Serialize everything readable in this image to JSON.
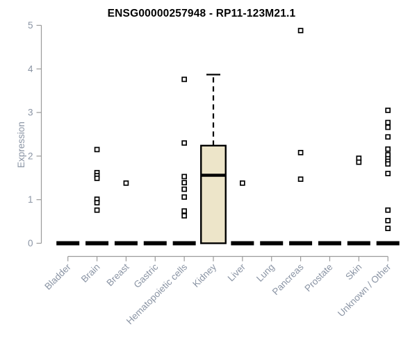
{
  "chart_data": {
    "type": "boxplot",
    "title": "ENSG00000257948 - RP11-123M21.1",
    "ylabel": "Expression",
    "xlabel": "",
    "ylim": [
      0,
      5
    ],
    "yticks": [
      0,
      1,
      2,
      3,
      4,
      5
    ],
    "grid": false,
    "legend": "none",
    "marker_style": "open-square",
    "categories": [
      "Bladder",
      "Brain",
      "Breast",
      "Gastric",
      "Hematopoietic cells",
      "Kidney",
      "Liver",
      "Lung",
      "Pancreas",
      "Prostate",
      "Skin",
      "Unknown / Other"
    ],
    "groups": [
      {
        "category": "Bladder",
        "zero_bar": true,
        "points": []
      },
      {
        "category": "Brain",
        "zero_bar": true,
        "points": [
          2.15,
          1.62,
          1.55,
          1.49,
          1.01,
          0.93,
          0.76
        ]
      },
      {
        "category": "Breast",
        "zero_bar": true,
        "points": [
          1.38
        ]
      },
      {
        "category": "Gastric",
        "zero_bar": true,
        "points": []
      },
      {
        "category": "Hematopoietic cells",
        "zero_bar": true,
        "points": [
          3.76,
          2.3,
          1.53,
          1.39,
          1.24,
          1.06,
          0.74,
          0.63
        ]
      },
      {
        "category": "Kidney",
        "zero_bar": false,
        "points": [],
        "box": {
          "whisker_low": 0,
          "q1": 0,
          "median": 1.56,
          "q3": 2.24,
          "whisker_high": 3.87
        }
      },
      {
        "category": "Liver",
        "zero_bar": true,
        "points": [
          1.38
        ]
      },
      {
        "category": "Lung",
        "zero_bar": true,
        "points": []
      },
      {
        "category": "Pancreas",
        "zero_bar": true,
        "points": [
          4.88,
          2.08,
          1.47
        ]
      },
      {
        "category": "Prostate",
        "zero_bar": true,
        "points": []
      },
      {
        "category": "Skin",
        "zero_bar": true,
        "points": [
          1.95,
          1.86
        ]
      },
      {
        "category": "Unknown / Other",
        "zero_bar": true,
        "points": [
          3.05,
          2.77,
          2.66,
          2.44,
          2.16,
          2.03,
          1.94,
          1.88,
          1.82,
          1.6,
          0.76,
          0.52,
          0.34
        ]
      }
    ],
    "colors": {
      "box_fill": "#EDE5C9",
      "box_stroke": "#000000",
      "marker": "#000000",
      "marker_fill": "#ffffff",
      "axis": "#9a9a9a",
      "tick_label": "#8a94a4",
      "title": "#000000"
    }
  }
}
